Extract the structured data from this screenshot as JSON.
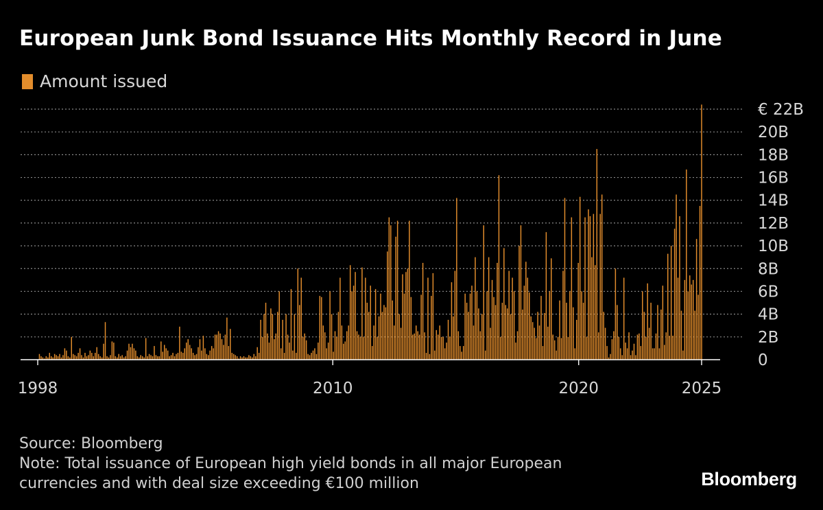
{
  "title": "European Junk Bond Issuance Hits Monthly Record in June",
  "source": "Source: Bloomberg",
  "note_line1": "Note: Total issuance of European high yield bonds in all major European",
  "note_line2": "currencies and with deal size exceeding €100 million",
  "brand": "Bloomberg",
  "colors": {
    "background": "#000000",
    "bar": "#e38d2c",
    "grid": "#8a8a8a",
    "axis": "#ffffff",
    "text": "#d8d8d8"
  },
  "chart_data": {
    "type": "bar",
    "title": "European Junk Bond Issuance Hits Monthly Record in June",
    "series": [
      {
        "name": "Amount issued"
      }
    ],
    "y_unit": "billion EUR",
    "ylim": [
      0,
      22
    ],
    "y_ticks": [
      0,
      2,
      4,
      6,
      8,
      10,
      12,
      14,
      16,
      18,
      20,
      22
    ],
    "y_tick_labels": [
      "0",
      "2B",
      "4B",
      "6B",
      "8B",
      "10B",
      "12B",
      "14B",
      "16B",
      "18B",
      "20B",
      "€ 22B"
    ],
    "x_ticks": [
      1998,
      2010,
      2020,
      2025
    ],
    "x_tick_labels": [
      "1998",
      "2010",
      "2020",
      "2025"
    ],
    "x_start": "1998-01",
    "grid": "horizontal dotted",
    "legend": "top-left",
    "values_by_year": {
      "1998": [
        0.0,
        0.5,
        0.3,
        0.2,
        0.1,
        0.3,
        0.2,
        0.6,
        0.3,
        0.2,
        0.5,
        0.4
      ],
      "1999": [
        0.3,
        0.5,
        0.2,
        0.4,
        1.0,
        0.8,
        0.3,
        0.2,
        2.0,
        0.5,
        0.4,
        0.3
      ],
      "2000": [
        0.6,
        1.0,
        0.4,
        0.2,
        0.6,
        0.3,
        0.4,
        0.8,
        0.6,
        0.3,
        0.6,
        1.1
      ],
      "2001": [
        0.5,
        0.3,
        0.2,
        1.4,
        3.3,
        0.3,
        0.2,
        0.4,
        1.6,
        1.5,
        0.3,
        0.2
      ],
      "2002": [
        0.5,
        0.3,
        0.4,
        0.2,
        0.3,
        0.8,
        1.4,
        1.1,
        1.4,
        1.0,
        0.8,
        0.3
      ],
      "2003": [
        0.2,
        0.4,
        0.3,
        0.2,
        1.9,
        0.3,
        0.5,
        0.4,
        0.3,
        1.2,
        0.4,
        0.3
      ],
      "2004": [
        0.3,
        1.6,
        0.7,
        1.3,
        1.0,
        0.8,
        0.3,
        0.4,
        0.6,
        0.3,
        0.5,
        0.6
      ],
      "2005": [
        2.9,
        0.7,
        0.6,
        1.0,
        1.5,
        1.8,
        1.3,
        1.0,
        0.6,
        0.4,
        0.5,
        1.1
      ],
      "2006": [
        1.8,
        0.8,
        2.1,
        1.0,
        0.5,
        0.4,
        0.8,
        1.2,
        1.0,
        2.2,
        2.2,
        2.5
      ],
      "2007": [
        2.3,
        1.8,
        1.3,
        2.2,
        3.7,
        1.2,
        2.7,
        0.6,
        0.5,
        0.4,
        0.3,
        0.1
      ],
      "2008": [
        0.3,
        0.2,
        0.3,
        0.2,
        0.2,
        0.4,
        0.3,
        0.2,
        0.5,
        0.3,
        1.1,
        0.6
      ],
      "2009": [
        3.5,
        2.0,
        4.0,
        5.0,
        2.3,
        1.5,
        4.5,
        4.0,
        1.8,
        2.3,
        4.2,
        6.0
      ],
      "2010": [
        1.0,
        3.5,
        0.6,
        4.0,
        2.2,
        1.5,
        6.2,
        0.8,
        4.0,
        0.6,
        8.0,
        4.8
      ],
      "2011": [
        7.2,
        2.0,
        2.3,
        1.7,
        0.5,
        0.4,
        0.6,
        0.8,
        1.0,
        0.5,
        1.5,
        5.6
      ],
      "2012": [
        5.5,
        3.0,
        2.4,
        1.0,
        1.5,
        6.0,
        4.0,
        0.7,
        2.5,
        2.0,
        4.2,
        7.2
      ],
      "2013": [
        3.0,
        1.4,
        1.6,
        2.5,
        3.0,
        8.3,
        6.0,
        6.5,
        7.7,
        2.5,
        2.2,
        2.0
      ],
      "2014": [
        8.1,
        2.0,
        7.2,
        5.0,
        4.2,
        6.5,
        1.2,
        3.0,
        6.2,
        2.0,
        3.8,
        5.8
      ],
      "2015": [
        4.2,
        4.8,
        4.6,
        9.5,
        12.5,
        11.8,
        5.2,
        3.0,
        10.8,
        12.2,
        4.0,
        2.8
      ],
      "2016": [
        7.5,
        5.8,
        7.7,
        8.0,
        12.2,
        5.5,
        2.2,
        2.3,
        3.0,
        2.5,
        2.2,
        5.7
      ],
      "2017": [
        8.5,
        2.4,
        0.6,
        7.2,
        0.5,
        5.6,
        7.6,
        0.8,
        2.6,
        2.2,
        3.0,
        2.0
      ],
      "2018": [
        2.0,
        1.0,
        1.5,
        3.5,
        2.0,
        6.8,
        3.8,
        7.8,
        14.2,
        2.5,
        1.2,
        0.7
      ],
      "2019": [
        1.2,
        5.8,
        5.0,
        4.2,
        5.8,
        6.5,
        3.0,
        9.0,
        6.0,
        4.5,
        2.5,
        4.0
      ],
      "2020": [
        11.8,
        0.8,
        6.0,
        9.0,
        2.8,
        7.0,
        5.5,
        4.8,
        8.5,
        16.2,
        2.0,
        5.0
      ],
      "2021": [
        9.8,
        4.8,
        4.5,
        7.8,
        4.0,
        7.2,
        6.0,
        1.5,
        2.5,
        10.0,
        11.8,
        4.4
      ],
      "2022": [
        6.5,
        8.6,
        7.2,
        5.9,
        3.8,
        3.3,
        2.8,
        1.9,
        4.2,
        3.0,
        5.6,
        1.2
      ],
      "2023": [
        4.1,
        11.2,
        2.9,
        6.0,
        8.9,
        2.2,
        1.7,
        0.8,
        2.0,
        5.2,
        1.9,
        7.8
      ],
      "2024": [
        14.2,
        5.0,
        2.0,
        6.0,
        12.5,
        4.6,
        1.0,
        3.5,
        8.5,
        14.3,
        6.0,
        5.0
      ],
      "2025": [
        12.5,
        2.0,
        13.2,
        12.6,
        9.0,
        12.8,
        8.3,
        18.5,
        2.4,
        12.8,
        14.5,
        4.2
      ]
    },
    "values_2025_continued": [
      2.8,
      1.2,
      0.2,
      0.5,
      1.8,
      2.5,
      8.0,
      4.8,
      2.0,
      1.0,
      0.4,
      7.2,
      1.5,
      1.0,
      2.4,
      0.4,
      0.8,
      1.4,
      0.4,
      2.2,
      2.3,
      1.2,
      6.0,
      4.2,
      2.0,
      6.7,
      2.8,
      5.0,
      1.0,
      1.0,
      2.3,
      4.8,
      1.0,
      4.4,
      6.5,
      1.3,
      2.4,
      9.3,
      2.1,
      10.0,
      2.1,
      11.5,
      14.5,
      7.2,
      12.6,
      4.3,
      0.8,
      7.0,
      16.7,
      6.0,
      7.4,
      6.6,
      7.0,
      4.3,
      10.6,
      5.7,
      13.5,
      22.4
    ]
  }
}
